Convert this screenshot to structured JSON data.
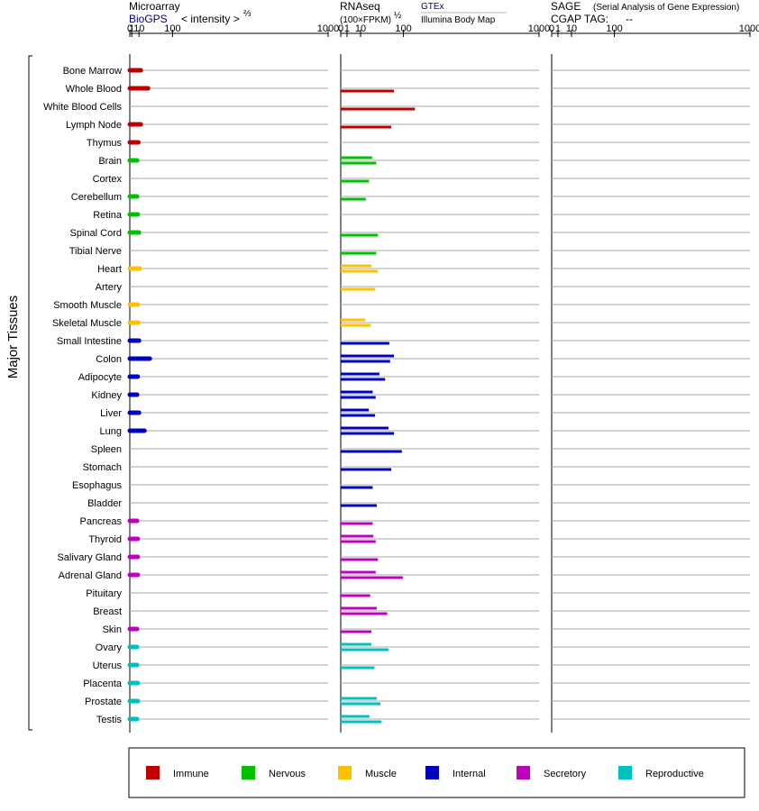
{
  "headers": {
    "microarray": {
      "title": "Microarray",
      "source": "BioGPS",
      "scale_label": "< intensity >",
      "scale_exp": "⅔"
    },
    "rnaseq": {
      "title": "RNAseq",
      "scale_label": "(100×FPKM)",
      "scale_exp": "½",
      "source1": "GTEx",
      "source2": "Illumina Body Map"
    },
    "sage": {
      "title": "SAGE",
      "subtitle": "(Serial Analysis of Gene Expression)",
      "tag_label": "CGAP TAG:",
      "tag_value": "--"
    }
  },
  "side_label": "Major Tissues",
  "legend": [
    {
      "name": "Immune",
      "color": "#c00000"
    },
    {
      "name": "Nervous",
      "color": "#00c000"
    },
    {
      "name": "Muscle",
      "color": "#ffc000"
    },
    {
      "name": "Internal",
      "color": "#0000c0"
    },
    {
      "name": "Secretory",
      "color": "#c000c0"
    },
    {
      "name": "Reproductive",
      "color": "#00c0c0"
    }
  ],
  "chart_data": {
    "type": "bar",
    "orientation": "horizontal",
    "x_scale": "power",
    "ticks": [
      0,
      1,
      10,
      100,
      1000
    ],
    "panels": [
      {
        "id": "microarray",
        "title": "Microarray",
        "exponent": 0.6667,
        "xlim": [
          0,
          1000
        ],
        "series_per_row": 1
      },
      {
        "id": "rnaseq",
        "title": "RNAseq",
        "exponent": 0.5,
        "xlim": [
          0,
          1000
        ],
        "series_per_row": 2,
        "series": [
          "GTEx",
          "Illumina Body Map"
        ]
      },
      {
        "id": "sage",
        "title": "SAGE",
        "exponent": 0.5,
        "xlim": [
          0,
          1000
        ],
        "series_per_row": 1
      }
    ],
    "tissues": [
      {
        "name": "Bone Marrow",
        "group": "Immune",
        "microarray": 13,
        "rnaseq": [
          null,
          null
        ],
        "sage": null
      },
      {
        "name": "Whole Blood",
        "group": "Immune",
        "microarray": 28,
        "rnaseq": [
          null,
          72
        ],
        "sage": null
      },
      {
        "name": "White Blood Cells",
        "group": "Immune",
        "microarray": null,
        "rnaseq": [
          null,
          140
        ],
        "sage": null
      },
      {
        "name": "Lymph Node",
        "group": "Immune",
        "microarray": 13,
        "rnaseq": [
          null,
          65
        ],
        "sage": null
      },
      {
        "name": "Thymus",
        "group": "Immune",
        "microarray": 9,
        "rnaseq": [
          null,
          null
        ],
        "sage": null
      },
      {
        "name": "Brain",
        "group": "Nervous",
        "microarray": 7,
        "rnaseq": [
          25,
          32
        ],
        "sage": null
      },
      {
        "name": "Cortex",
        "group": "Nervous",
        "microarray": null,
        "rnaseq": [
          null,
          20
        ],
        "sage": null
      },
      {
        "name": "Cerebellum",
        "group": "Nervous",
        "microarray": 7,
        "rnaseq": [
          null,
          16
        ],
        "sage": null
      },
      {
        "name": "Retina",
        "group": "Nervous",
        "microarray": 8,
        "rnaseq": [
          null,
          null
        ],
        "sage": null
      },
      {
        "name": "Spinal Cord",
        "group": "Nervous",
        "microarray": 10,
        "rnaseq": [
          null,
          35
        ],
        "sage": null
      },
      {
        "name": "Tibial Nerve",
        "group": "Nervous",
        "microarray": null,
        "rnaseq": [
          null,
          32
        ],
        "sage": null
      },
      {
        "name": "Heart",
        "group": "Muscle",
        "microarray": 11,
        "rnaseq": [
          24,
          35
        ],
        "sage": null
      },
      {
        "name": "Artery",
        "group": "Muscle",
        "microarray": null,
        "rnaseq": [
          null,
          30
        ],
        "sage": null
      },
      {
        "name": "Smooth Muscle",
        "group": "Muscle",
        "microarray": 8,
        "rnaseq": [
          null,
          null
        ],
        "sage": null
      },
      {
        "name": "Skeletal Muscle",
        "group": "Muscle",
        "microarray": 9,
        "rnaseq": [
          15,
          23
        ],
        "sage": null
      },
      {
        "name": "Small Intestine",
        "group": "Internal",
        "microarray": 10,
        "rnaseq": [
          null,
          60
        ],
        "sage": null
      },
      {
        "name": "Colon",
        "group": "Internal",
        "microarray": 32,
        "rnaseq": [
          72,
          62
        ],
        "sage": null
      },
      {
        "name": "Adipocyte",
        "group": "Internal",
        "microarray": 8,
        "rnaseq": [
          38,
          50
        ],
        "sage": null
      },
      {
        "name": "Kidney",
        "group": "Internal",
        "microarray": 7,
        "rnaseq": [
          26,
          31
        ],
        "sage": null
      },
      {
        "name": "Liver",
        "group": "Internal",
        "microarray": 10,
        "rnaseq": [
          20,
          30
        ],
        "sage": null
      },
      {
        "name": "Lung",
        "group": "Internal",
        "microarray": 20,
        "rnaseq": [
          58,
          72
        ],
        "sage": null
      },
      {
        "name": "Spleen",
        "group": "Internal",
        "microarray": null,
        "rnaseq": [
          null,
          95
        ],
        "sage": null
      },
      {
        "name": "Stomach",
        "group": "Internal",
        "microarray": null,
        "rnaseq": [
          null,
          65
        ],
        "sage": null
      },
      {
        "name": "Esophagus",
        "group": "Internal",
        "microarray": null,
        "rnaseq": [
          null,
          26
        ],
        "sage": null
      },
      {
        "name": "Bladder",
        "group": "Internal",
        "microarray": null,
        "rnaseq": [
          null,
          33
        ],
        "sage": null
      },
      {
        "name": "Pancreas",
        "group": "Secretory",
        "microarray": 7,
        "rnaseq": [
          null,
          26
        ],
        "sage": null
      },
      {
        "name": "Thyroid",
        "group": "Secretory",
        "microarray": 8,
        "rnaseq": [
          27,
          31
        ],
        "sage": null
      },
      {
        "name": "Salivary Gland",
        "group": "Secretory",
        "microarray": 8,
        "rnaseq": [
          null,
          35
        ],
        "sage": null
      },
      {
        "name": "Adrenal Gland",
        "group": "Secretory",
        "microarray": 8,
        "rnaseq": [
          31,
          98
        ],
        "sage": null
      },
      {
        "name": "Pituitary",
        "group": "Secretory",
        "microarray": null,
        "rnaseq": [
          null,
          22
        ],
        "sage": null
      },
      {
        "name": "Breast",
        "group": "Secretory",
        "microarray": null,
        "rnaseq": [
          33,
          55
        ],
        "sage": null
      },
      {
        "name": "Skin",
        "group": "Secretory",
        "microarray": 7,
        "rnaseq": [
          null,
          24
        ],
        "sage": null
      },
      {
        "name": "Ovary",
        "group": "Reproductive",
        "microarray": 7,
        "rnaseq": [
          24,
          58
        ],
        "sage": null
      },
      {
        "name": "Uterus",
        "group": "Reproductive",
        "microarray": 7,
        "rnaseq": [
          null,
          29
        ],
        "sage": null
      },
      {
        "name": "Placenta",
        "group": "Reproductive",
        "microarray": 8,
        "rnaseq": [
          null,
          null
        ],
        "sage": null
      },
      {
        "name": "Prostate",
        "group": "Reproductive",
        "microarray": 8,
        "rnaseq": [
          33,
          40
        ],
        "sage": null
      },
      {
        "name": "Testis",
        "group": "Reproductive",
        "microarray": 7,
        "rnaseq": [
          21,
          42
        ],
        "sage": null
      }
    ]
  }
}
